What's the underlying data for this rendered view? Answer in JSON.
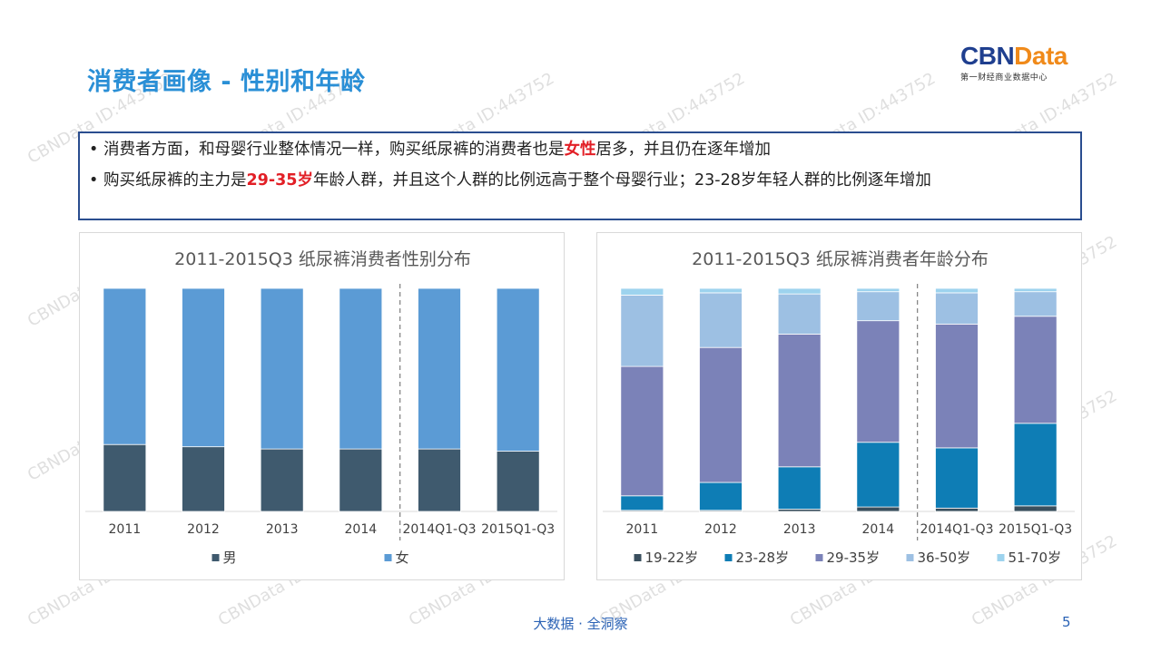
{
  "page": {
    "title": "消费者画像 - 性别和年龄",
    "logo": {
      "main_a": "CBN",
      "main_b": "Data",
      "sub": "第一财经商业数据中心"
    },
    "bullets": [
      {
        "pre": "消费者方面，和母婴行业整体情况一样，购买纸尿裤的消费者也是",
        "highlight": "女性",
        "post": "居多，并且仍在逐年增加"
      },
      {
        "pre": "购买纸尿裤的主力是",
        "highlight": "29-35岁",
        "post": "年龄人群，并且这个人群的比例远高于整个母婴行业；23-28岁年轻人群的比例逐年增加"
      }
    ],
    "footer": "大数据 · 全洞察",
    "page_number": "5",
    "watermark": "CBNData ID:443752"
  },
  "chart_data": [
    {
      "type": "bar",
      "stacked": true,
      "title": "2011-2015Q3 纸尿裤消费者性别分布",
      "categories": [
        "2011",
        "2012",
        "2013",
        "2014",
        "2014Q1-Q3",
        "2015Q1-Q3"
      ],
      "ylim": [
        0,
        1
      ],
      "legend_position": "bottom",
      "separator_after_index": 3,
      "series": [
        {
          "name": "男",
          "color": "#3f5a6e",
          "values": [
            0.3,
            0.29,
            0.28,
            0.28,
            0.28,
            0.27
          ]
        },
        {
          "name": "女",
          "color": "#5b9bd5",
          "values": [
            0.7,
            0.71,
            0.72,
            0.72,
            0.72,
            0.73
          ]
        }
      ]
    },
    {
      "type": "bar",
      "stacked": true,
      "title": "2011-2015Q3 纸尿裤消费者年龄分布",
      "categories": [
        "2011",
        "2012",
        "2013",
        "2014",
        "2014Q1-Q3",
        "2015Q1-Q3"
      ],
      "ylim": [
        0,
        1
      ],
      "legend_position": "bottom",
      "separator_after_index": 3,
      "series": [
        {
          "name": "19-22岁",
          "color": "#3a4f5e",
          "values": [
            0.005,
            0.005,
            0.01,
            0.02,
            0.015,
            0.025
          ]
        },
        {
          "name": "23-28岁",
          "color": "#0e7db5",
          "values": [
            0.065,
            0.125,
            0.19,
            0.29,
            0.27,
            0.37
          ]
        },
        {
          "name": "29-35岁",
          "color": "#7b82b8",
          "values": [
            0.58,
            0.605,
            0.595,
            0.545,
            0.555,
            0.48
          ]
        },
        {
          "name": "36-50岁",
          "color": "#9dc0e3",
          "values": [
            0.32,
            0.245,
            0.18,
            0.13,
            0.14,
            0.11
          ]
        },
        {
          "name": "51-70岁",
          "color": "#9dd3ee",
          "values": [
            0.03,
            0.02,
            0.025,
            0.015,
            0.02,
            0.015
          ]
        }
      ]
    }
  ]
}
